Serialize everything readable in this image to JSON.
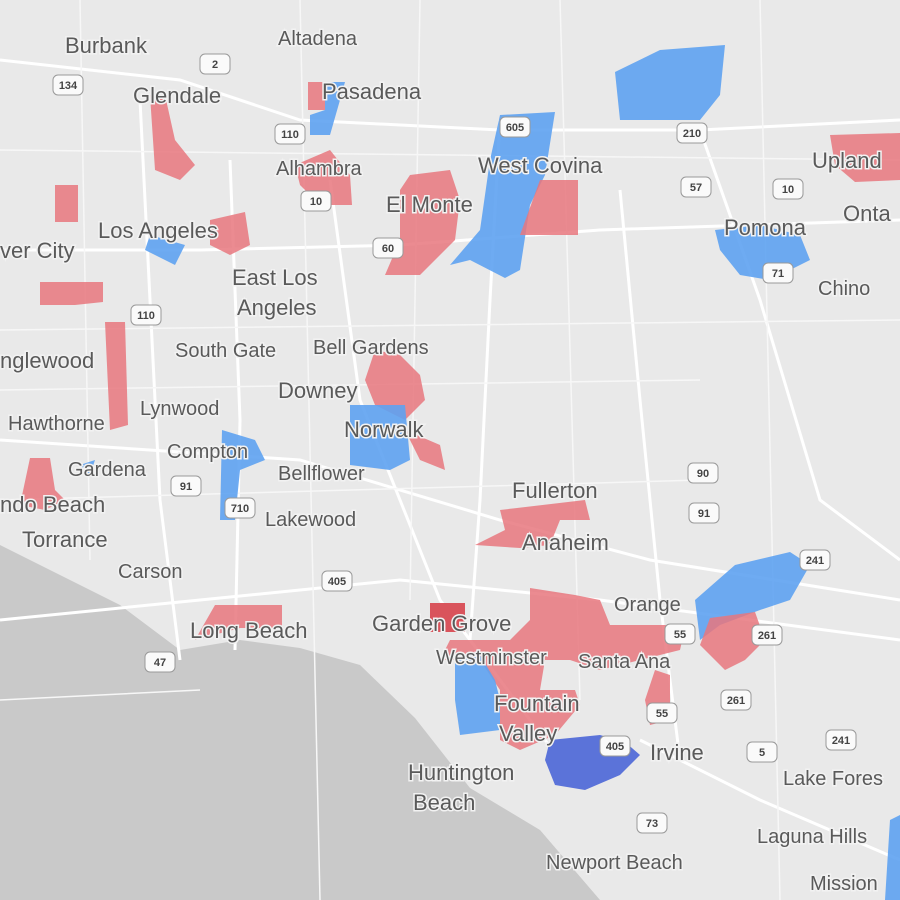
{
  "places": [
    [
      "Burbank"
    ],
    [
      "Altadena"
    ],
    [
      "Glendale"
    ],
    [
      "Pasadena"
    ],
    [
      "Alhambra"
    ],
    [
      "West Covina"
    ],
    [
      "El Monte"
    ],
    [
      "Los Angeles"
    ],
    [
      "ver City"
    ],
    [
      "East Los",
      "Angeles"
    ],
    [
      "Upland"
    ],
    [
      "Onta"
    ],
    [
      "Pomona"
    ],
    [
      "Chino"
    ],
    [
      "South Gate"
    ],
    [
      "Bell Gardens"
    ],
    [
      "nglewood"
    ],
    [
      "Downey"
    ],
    [
      "Lynwood"
    ],
    [
      "Hawthorne"
    ],
    [
      "Norwalk"
    ],
    [
      "Compton"
    ],
    [
      "Gardena"
    ],
    [
      "Bellflower"
    ],
    [
      "Fullerton"
    ],
    [
      "ndo Beach"
    ],
    [
      "Lakewood"
    ],
    [
      "Anaheim"
    ],
    [
      "Torrance"
    ],
    [
      "Carson"
    ],
    [
      "Orange"
    ],
    [
      "Long Beach"
    ],
    [
      "Garden Grove"
    ],
    [
      "Westminster"
    ],
    [
      "Santa Ana"
    ],
    [
      "Fountain",
      "Valley"
    ],
    [
      "Irvine"
    ],
    [
      "Huntington",
      "Beach"
    ],
    [
      "Lake Fores"
    ],
    [
      "Laguna Hills"
    ],
    [
      "Newport Beach"
    ],
    [
      "Mission"
    ]
  ],
  "highways": [
    "134",
    "2",
    "110",
    "605",
    "210",
    "10",
    "57",
    "10",
    "60",
    "71",
    "110",
    "90",
    "91",
    "91",
    "710",
    "405",
    "241",
    "55",
    "261",
    "47",
    "405",
    "261",
    "55",
    "5",
    "241",
    "73"
  ]
}
